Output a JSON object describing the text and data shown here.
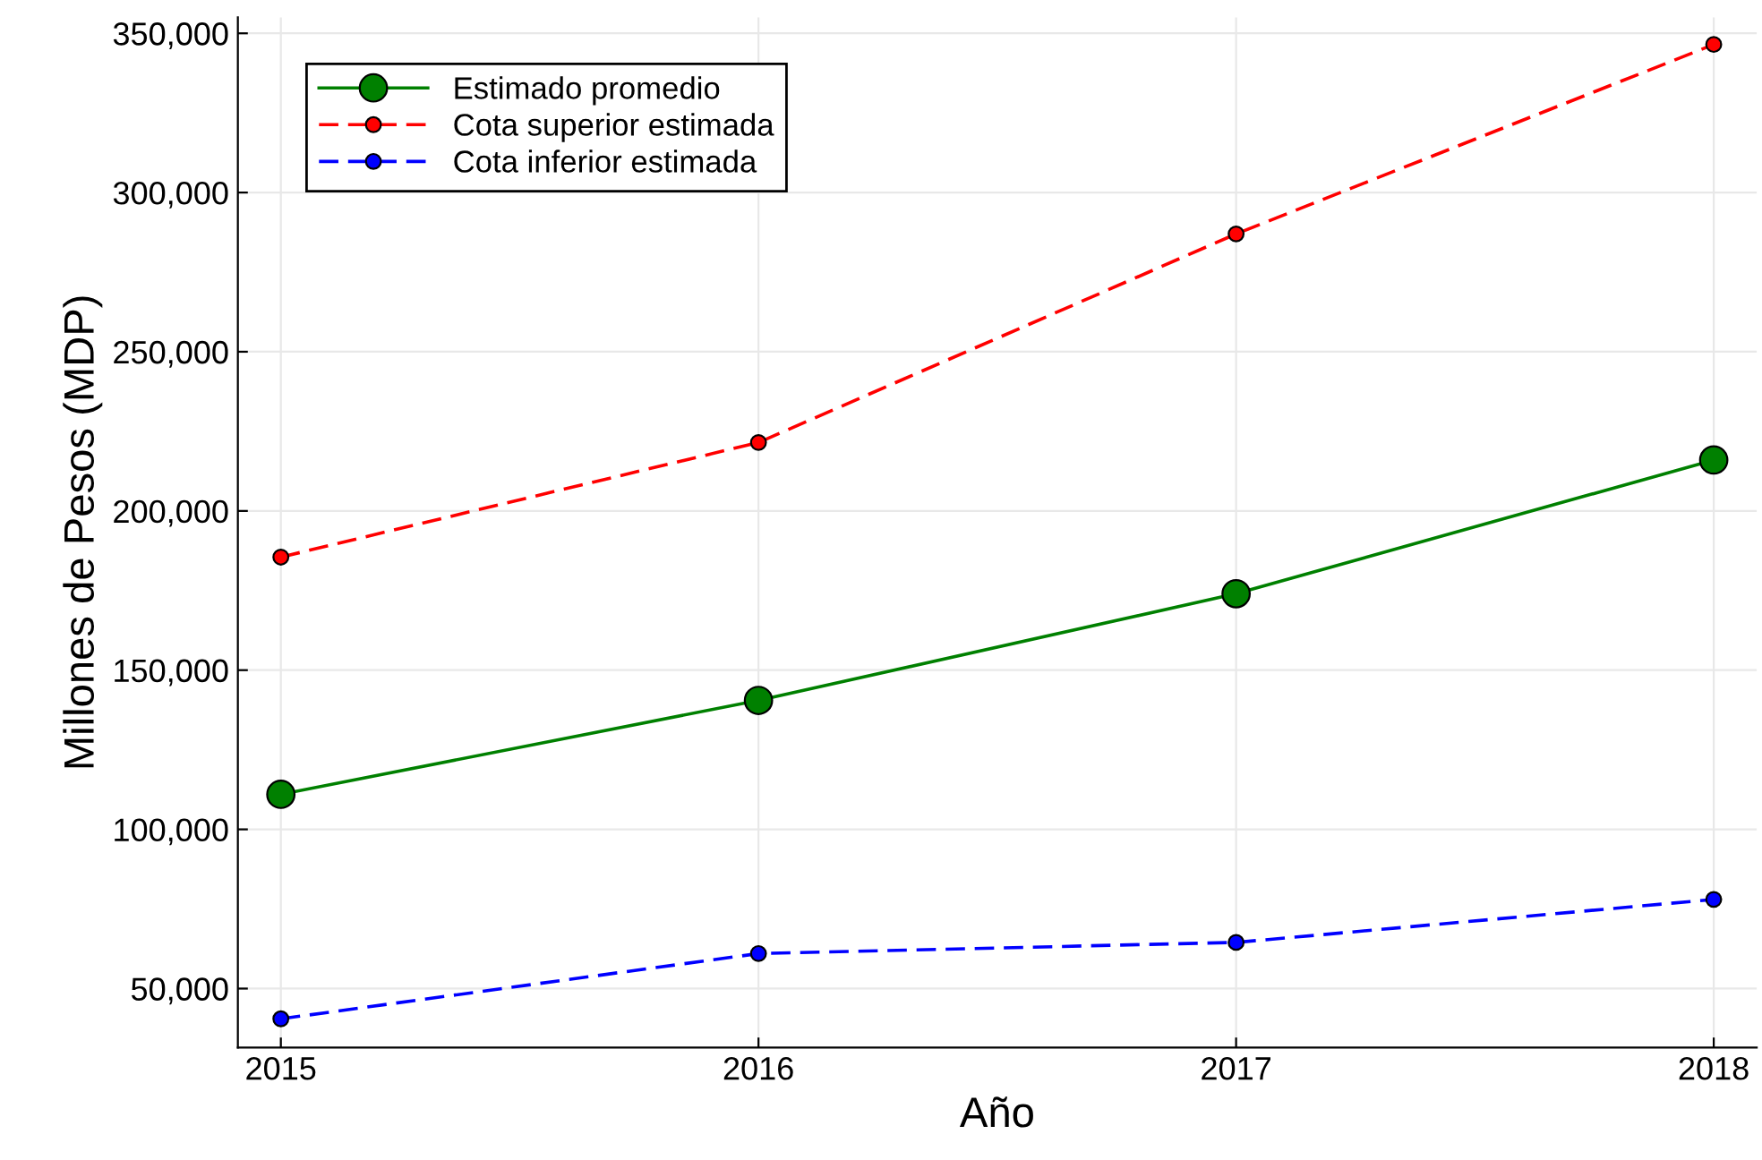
{
  "chart_data": {
    "type": "line",
    "xlabel": "Año",
    "ylabel": "Millones de Pesos (MDP)",
    "x": [
      2015,
      2016,
      2017,
      2018
    ],
    "series": [
      {
        "name": "Estimado promedio",
        "color": "#008000",
        "values": [
          111000,
          140500,
          174000,
          216000
        ],
        "line_style": "solid"
      },
      {
        "name": "Cota superior estimada",
        "color": "#ff0000",
        "values": [
          185500,
          221500,
          287000,
          346500
        ],
        "line_style": "dashed"
      },
      {
        "name": "Cota inferior estimada",
        "color": "#0000ff",
        "values": [
          40500,
          61000,
          64500,
          78000
        ],
        "line_style": "dashed"
      }
    ],
    "xlim": [
      2014.91,
      2018.09
    ],
    "ylim": [
      31500,
      355000
    ],
    "xticks": [
      2015,
      2016,
      2017,
      2018
    ],
    "yticks": [
      {
        "value": 50000,
        "label": "50,000"
      },
      {
        "value": 100000,
        "label": "100,000"
      },
      {
        "value": 150000,
        "label": "150,000"
      },
      {
        "value": 200000,
        "label": "200,000"
      },
      {
        "value": 250000,
        "label": "250,000"
      },
      {
        "value": 300000,
        "label": "300,000"
      },
      {
        "value": 350000,
        "label": "350,000"
      }
    ],
    "grid": true,
    "legend": "top left",
    "marker": "circle"
  }
}
